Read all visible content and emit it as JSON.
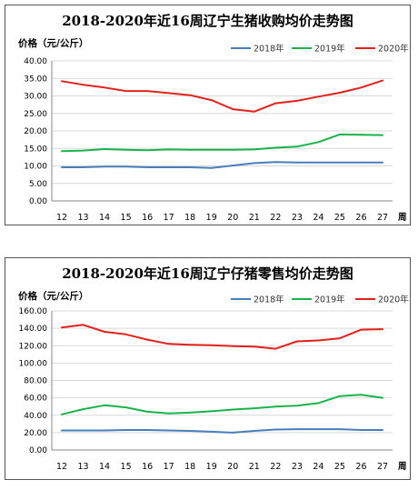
{
  "chart_data": [
    {
      "type": "line",
      "title": "2018-2020年近16周辽宁生猪收购均价走势图",
      "ylabel": "价格（元/公斤）",
      "xlabel": "周",
      "ylim": [
        0,
        40
      ],
      "yticks": [
        "0.00",
        "5.00",
        "10.00",
        "15.00",
        "20.00",
        "25.00",
        "30.00",
        "35.00",
        "40.00"
      ],
      "x": [
        12,
        13,
        14,
        15,
        16,
        17,
        18,
        19,
        20,
        21,
        22,
        23,
        24,
        25,
        26,
        27
      ],
      "grid": true,
      "legend": "top-right",
      "series": [
        {
          "name": "2018年",
          "color": "#4a7ebb",
          "values": [
            9.6,
            9.6,
            9.8,
            9.8,
            9.6,
            9.6,
            9.6,
            9.4,
            10.1,
            10.8,
            11.1,
            11.0,
            11.0,
            11.0,
            11.0,
            11.0
          ]
        },
        {
          "name": "2019年",
          "color": "#1ab34a",
          "values": [
            14.2,
            14.4,
            14.8,
            14.6,
            14.5,
            14.7,
            14.6,
            14.6,
            14.6,
            14.7,
            15.2,
            15.5,
            16.8,
            19.0,
            18.9,
            18.8
          ]
        },
        {
          "name": "2020年",
          "color": "#e3211c",
          "values": [
            34.2,
            33.2,
            32.4,
            31.4,
            31.4,
            30.8,
            30.2,
            28.8,
            26.2,
            25.5,
            27.9,
            28.6,
            29.8,
            30.9,
            32.4,
            34.4
          ]
        }
      ]
    },
    {
      "type": "line",
      "title": "2018-2020年近16周辽宁仔猪零售均价走势图",
      "ylabel": "价格（元/公斤）",
      "xlabel": "周",
      "ylim": [
        0,
        160
      ],
      "yticks": [
        "0.00",
        "20.00",
        "40.00",
        "60.00",
        "80.00",
        "100.00",
        "120.00",
        "140.00",
        "160.00"
      ],
      "x": [
        12,
        13,
        14,
        15,
        16,
        17,
        18,
        19,
        20,
        21,
        22,
        23,
        24,
        25,
        26,
        27
      ],
      "grid": true,
      "legend": "top-right",
      "series": [
        {
          "name": "2018年",
          "color": "#4a7ebb",
          "values": [
            22.5,
            22.5,
            22.5,
            23.0,
            23.0,
            22.5,
            22.0,
            21.0,
            20.0,
            22.0,
            23.5,
            24.0,
            24.0,
            24.0,
            23.0,
            23.0
          ]
        },
        {
          "name": "2019年",
          "color": "#1ab34a",
          "values": [
            41.0,
            47.0,
            51.5,
            49.0,
            44.0,
            42.0,
            43.0,
            44.5,
            46.5,
            48.0,
            50.0,
            51.0,
            54.0,
            62.0,
            63.5,
            60.0
          ]
        },
        {
          "name": "2020年",
          "color": "#e3211c",
          "values": [
            141.0,
            144.0,
            136.0,
            133.0,
            127.0,
            122.0,
            121.0,
            120.5,
            119.5,
            119.0,
            116.5,
            125.0,
            126.0,
            128.5,
            138.5,
            139.0
          ]
        }
      ]
    }
  ]
}
